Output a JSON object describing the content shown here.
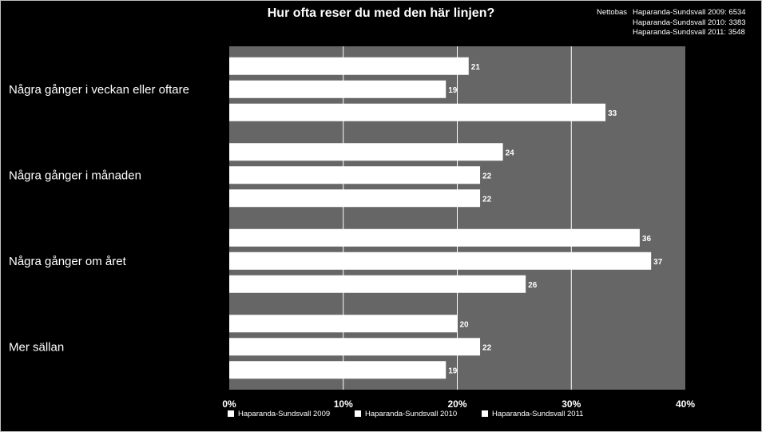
{
  "chart_data": {
    "type": "bar",
    "orientation": "horizontal",
    "title": "Hur ofta reser du med den här linjen?",
    "categories": [
      "Några gånger i veckan eller oftare",
      "Några gånger i månaden",
      "Några gånger om året",
      "Mer sällan"
    ],
    "series": [
      {
        "name": "Haparanda-Sundsvall 2009",
        "values": [
          21,
          24,
          36,
          20
        ]
      },
      {
        "name": "Haparanda-Sundsvall 2010",
        "values": [
          19,
          22,
          37,
          22
        ]
      },
      {
        "name": "Haparanda-Sundsvall 2011",
        "values": [
          33,
          22,
          26,
          19
        ]
      }
    ],
    "xlim": [
      0,
      40
    ],
    "xticks": [
      "0%",
      "10%",
      "20%",
      "30%",
      "40%"
    ],
    "grid": true,
    "legend": "bottom",
    "colors": {
      "background": "#000000",
      "plot_area": "#666666",
      "bars": "#ffffff",
      "gridlines": "#ffffff"
    }
  },
  "nettobas": {
    "label": "Nettobas",
    "lines": [
      "Haparanda-Sundsvall 2009: 6534",
      "Haparanda-Sundsvall 2010: 3383",
      "Haparanda-Sundsvall 2011: 3548"
    ]
  }
}
